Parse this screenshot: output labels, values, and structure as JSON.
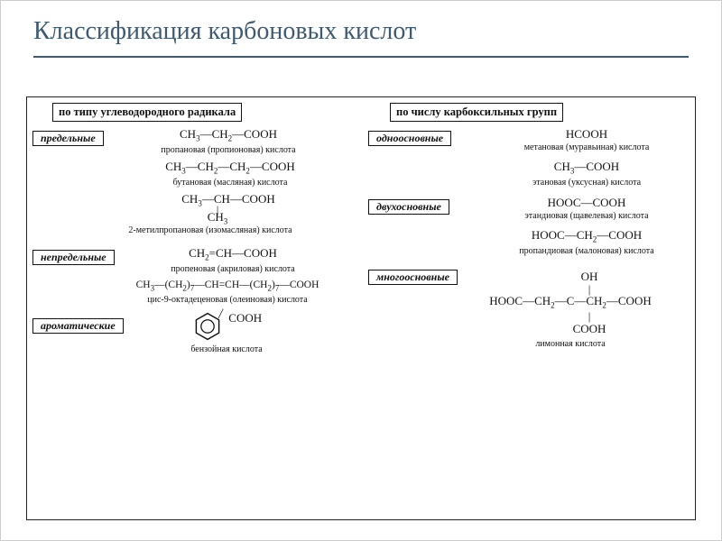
{
  "title": "Классификация карбоновых кислот",
  "colors": {
    "title": "#3f5a6e",
    "border": "#111111",
    "text": "#111111"
  },
  "left": {
    "heading": "по типу углеводородного радикала",
    "groups": [
      {
        "label": "предельные",
        "items": [
          {
            "formula_html": "CH<sub>3</sub>—CH<sub>2</sub>—COOH",
            "caption": "пропановая (пропионовая) кислота"
          },
          {
            "formula_html": "CH<sub>3</sub>—CH<sub>2</sub>—CH<sub>2</sub>—COOH",
            "caption": "бутановая (масляная) кислота"
          },
          {
            "formula_html": "CH<sub>3</sub>—CH—COOH",
            "branch_html": "|<br>CH<sub>3</sub>",
            "caption": "2-метилпропановая (изомасляная) кислота"
          }
        ]
      },
      {
        "label": "непредельные",
        "items": [
          {
            "formula_html": "CH<sub>2</sub>=CH—COOH",
            "caption": "пропеновая (акриловая) кислота"
          },
          {
            "formula_html": "CH<sub>3</sub>—(CH<sub>2</sub>)<sub>7</sub>—CH=CH—(CH<sub>2</sub>)<sub>7</sub>—COOH",
            "caption": "цис-9-октадеценовая (олеиновая) кислота"
          }
        ]
      },
      {
        "label": "ароматические",
        "items": [
          {
            "formula_html": "",
            "caption": "бензойная кислота",
            "benzene": true
          }
        ]
      }
    ]
  },
  "right": {
    "heading": "по числу карбоксильных групп",
    "groups": [
      {
        "label": "одноосновные",
        "items": [
          {
            "formula_html": "HCOOH",
            "caption": "метановая (муравьиная) кислота"
          },
          {
            "formula_html": "CH<sub>3</sub>—COOH",
            "caption": "этановая (уксусная) кислота"
          }
        ]
      },
      {
        "label": "двухосновные",
        "items": [
          {
            "formula_html": "HOOC—COOH",
            "caption": "этандиовая (щавелевая) кислота"
          },
          {
            "formula_html": "HOOC—CH<sub>2</sub>—COOH",
            "caption": "пропандиовая (малоновая) кислота"
          }
        ]
      },
      {
        "label": "многоосновные",
        "items": [
          {
            "citric": true,
            "caption": "лимонная кислота"
          }
        ]
      }
    ]
  }
}
